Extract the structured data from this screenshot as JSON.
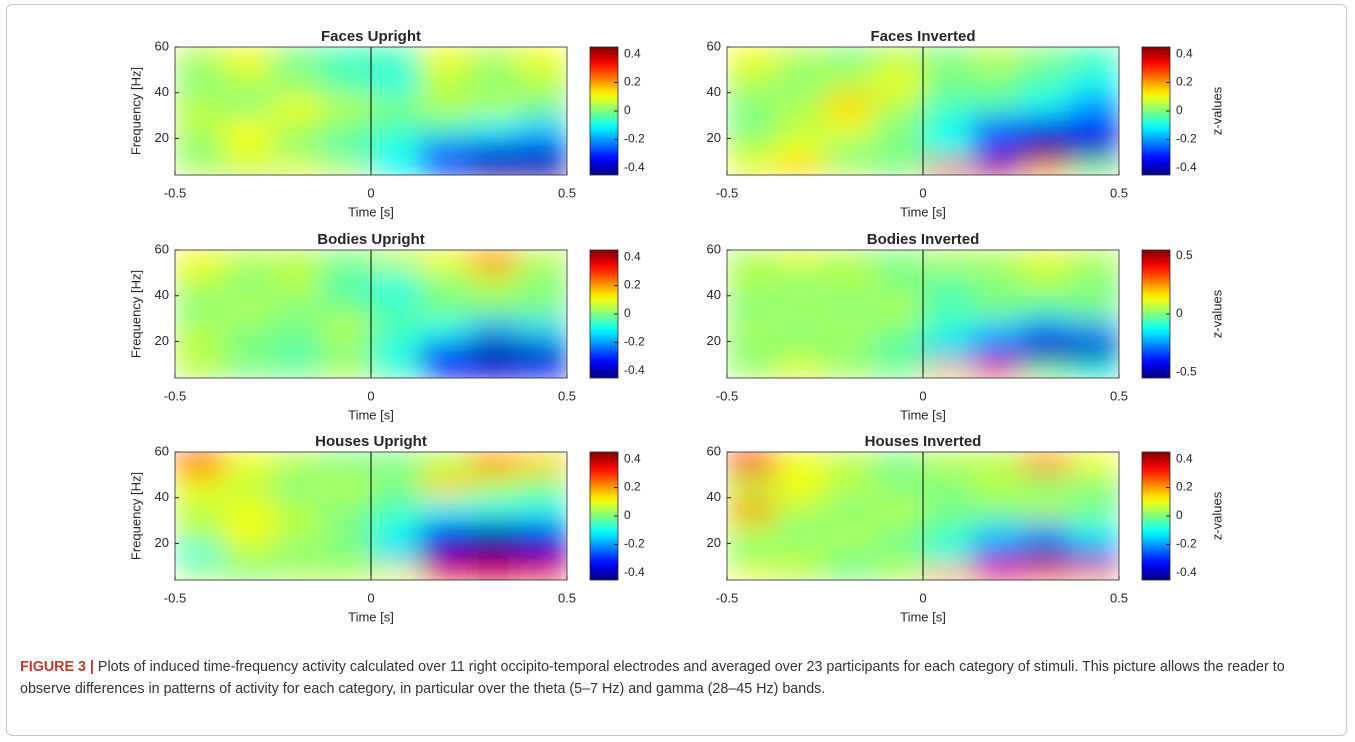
{
  "chart_data": [
    {
      "type": "heatmap",
      "title": "Faces Upright",
      "xlabel": "Time [s]",
      "ylabel": "Frequency [Hz]",
      "xlim": [
        -0.5,
        0.5
      ],
      "xticks": [
        -0.5,
        0,
        0.5
      ],
      "ylim": [
        4,
        60
      ],
      "yticks": [
        20,
        40,
        60
      ],
      "vline": 0,
      "clim": [
        -0.45,
        0.45
      ],
      "cticks": [
        -0.4,
        -0.2,
        0,
        0.2,
        0.4
      ],
      "x": [
        -0.44,
        -0.31,
        -0.19,
        -0.06,
        0.06,
        0.19,
        0.31,
        0.44
      ],
      "y": [
        7,
        15,
        25,
        35,
        45,
        55
      ],
      "z": [
        [
          0.05,
          0.05,
          0.1,
          0.05,
          -0.1,
          -0.3,
          -0.45,
          -0.45
        ],
        [
          0,
          0.1,
          0,
          -0.05,
          -0.1,
          -0.25,
          -0.35,
          -0.35
        ],
        [
          0.05,
          0.1,
          0.05,
          0,
          -0.05,
          -0.05,
          -0.1,
          -0.15
        ],
        [
          0.05,
          0,
          0.1,
          0.05,
          0,
          0.05,
          0.05,
          0
        ],
        [
          0,
          0.05,
          0,
          -0.05,
          -0.1,
          0.05,
          0,
          0.05
        ],
        [
          0.05,
          0.1,
          0,
          -0.05,
          -0.05,
          0.1,
          0.05,
          0.1
        ]
      ]
    },
    {
      "type": "heatmap",
      "title": "Faces Inverted",
      "xlabel": "Time [s]",
      "clabel": "z-values",
      "xlim": [
        -0.5,
        0.5
      ],
      "xticks": [
        -0.5,
        0,
        0.5
      ],
      "ylim": [
        4,
        60
      ],
      "yticks": [
        20,
        40,
        60
      ],
      "vline": 0,
      "clim": [
        -0.45,
        0.45
      ],
      "cticks": [
        -0.4,
        -0.2,
        0,
        0.2,
        0.4
      ],
      "x": [
        -0.44,
        -0.31,
        -0.19,
        -0.06,
        0.06,
        0.19,
        0.31,
        0.44
      ],
      "y": [
        7,
        15,
        25,
        35,
        45,
        55
      ],
      "z": [
        [
          0.1,
          0.15,
          0.05,
          0,
          0.35,
          0.4,
          0.2,
          0
        ],
        [
          0.05,
          0.1,
          0,
          0,
          -0.1,
          -0.3,
          -0.45,
          -0.4
        ],
        [
          0,
          0.05,
          0.1,
          0,
          -0.1,
          -0.25,
          -0.35,
          -0.3
        ],
        [
          0,
          0.05,
          0.15,
          0.05,
          -0.05,
          -0.05,
          -0.1,
          -0.2
        ],
        [
          0.05,
          0,
          0.05,
          0.1,
          0,
          0,
          -0.05,
          -0.1
        ],
        [
          0.1,
          0.05,
          0,
          0.05,
          0,
          0.05,
          0,
          -0.05
        ]
      ]
    },
    {
      "type": "heatmap",
      "title": "Bodies Upright",
      "xlabel": "Time [s]",
      "ylabel": "Frequency [Hz]",
      "xlim": [
        -0.5,
        0.5
      ],
      "xticks": [
        -0.5,
        0,
        0.5
      ],
      "ylim": [
        4,
        60
      ],
      "yticks": [
        20,
        40,
        60
      ],
      "vline": 0,
      "clim": [
        -0.45,
        0.45
      ],
      "cticks": [
        -0.4,
        -0.2,
        0,
        0.2,
        0.4
      ],
      "x": [
        -0.44,
        -0.31,
        -0.19,
        -0.06,
        0.06,
        0.19,
        0.31,
        0.44
      ],
      "y": [
        7,
        15,
        25,
        35,
        45,
        55
      ],
      "z": [
        [
          0.05,
          0,
          0,
          0.05,
          -0.05,
          -0.3,
          -0.35,
          -0.3
        ],
        [
          0.05,
          0,
          -0.05,
          0,
          -0.1,
          -0.35,
          -0.45,
          -0.4
        ],
        [
          0.05,
          0,
          0,
          0.05,
          -0.05,
          -0.1,
          -0.2,
          -0.15
        ],
        [
          0,
          0.05,
          0,
          0,
          -0.05,
          0,
          0,
          0
        ],
        [
          0.05,
          0,
          0.05,
          -0.05,
          -0.1,
          0,
          0.05,
          0
        ],
        [
          0.1,
          0.05,
          0.05,
          0,
          0.05,
          0.1,
          0.2,
          0.05
        ]
      ]
    },
    {
      "type": "heatmap",
      "title": "Bodies Inverted",
      "xlabel": "Time [s]",
      "clabel": "z-values",
      "xlim": [
        -0.5,
        0.5
      ],
      "xticks": [
        -0.5,
        0,
        0.5
      ],
      "ylim": [
        4,
        60
      ],
      "yticks": [
        20,
        40,
        60
      ],
      "vline": 0,
      "clim": [
        -0.55,
        0.55
      ],
      "cticks": [
        -0.5,
        0,
        0.5
      ],
      "x": [
        -0.44,
        -0.31,
        -0.19,
        -0.06,
        0.06,
        0.19,
        0.31,
        0.44
      ],
      "y": [
        7,
        15,
        25,
        35,
        45,
        55
      ],
      "z": [
        [
          0.05,
          0.1,
          0.05,
          0,
          0.2,
          0.3,
          0,
          -0.1
        ],
        [
          0,
          0.05,
          0,
          -0.05,
          -0.2,
          -0.4,
          -0.5,
          -0.5
        ],
        [
          0.05,
          0,
          0.05,
          0,
          -0.1,
          -0.2,
          -0.3,
          -0.25
        ],
        [
          0,
          0.05,
          0,
          0.05,
          -0.05,
          0,
          -0.05,
          0
        ],
        [
          0.05,
          0,
          0.05,
          0,
          -0.05,
          0,
          0.05,
          0
        ],
        [
          0.05,
          0.1,
          0.05,
          0,
          0.05,
          0.05,
          0.1,
          0.05
        ]
      ]
    },
    {
      "type": "heatmap",
      "title": "Houses Upright",
      "xlabel": "Time [s]",
      "ylabel": "Frequency [Hz]",
      "xlim": [
        -0.5,
        0.5
      ],
      "xticks": [
        -0.5,
        0,
        0.5
      ],
      "ylim": [
        4,
        60
      ],
      "yticks": [
        20,
        40,
        60
      ],
      "vline": 0,
      "clim": [
        -0.45,
        0.45
      ],
      "cticks": [
        -0.4,
        -0.2,
        0,
        0.2,
        0.4
      ],
      "x": [
        -0.44,
        -0.31,
        -0.19,
        -0.06,
        0.06,
        0.19,
        0.31,
        0.44
      ],
      "y": [
        7,
        15,
        25,
        35,
        45,
        55
      ],
      "z": [
        [
          0.05,
          0,
          0.05,
          0.05,
          0.1,
          0.3,
          0.35,
          0.3
        ],
        [
          -0.1,
          0.05,
          0,
          0,
          -0.15,
          -0.4,
          -0.45,
          -0.4
        ],
        [
          0.05,
          0.1,
          0.05,
          0,
          -0.1,
          -0.35,
          -0.4,
          -0.35
        ],
        [
          0.05,
          0.1,
          0.05,
          0,
          -0.05,
          -0.1,
          -0.1,
          -0.1
        ],
        [
          0.1,
          0.05,
          0,
          0.05,
          0,
          0.15,
          0.05,
          0
        ],
        [
          0.25,
          0.1,
          0.05,
          0,
          0,
          0.05,
          0.2,
          0.15
        ]
      ]
    },
    {
      "type": "heatmap",
      "title": "Houses Inverted",
      "xlabel": "Time [s]",
      "clabel": "z-values",
      "xlim": [
        -0.5,
        0.5
      ],
      "xticks": [
        -0.5,
        0,
        0.5
      ],
      "ylim": [
        4,
        60
      ],
      "yticks": [
        20,
        40,
        60
      ],
      "vline": 0,
      "clim": [
        -0.45,
        0.45
      ],
      "cticks": [
        -0.4,
        -0.2,
        0,
        0.2,
        0.4
      ],
      "x": [
        -0.44,
        -0.31,
        -0.19,
        -0.06,
        0.06,
        0.19,
        0.31,
        0.44
      ],
      "y": [
        7,
        15,
        25,
        35,
        45,
        55
      ],
      "z": [
        [
          0.1,
          0.05,
          0,
          0.05,
          0.2,
          0.3,
          0.25,
          0.2
        ],
        [
          0,
          0.05,
          0,
          0,
          -0.1,
          -0.3,
          -0.4,
          -0.3
        ],
        [
          0.05,
          0,
          0.05,
          0,
          -0.05,
          -0.15,
          -0.2,
          -0.1
        ],
        [
          0.2,
          0.05,
          0,
          0.05,
          0,
          0,
          0.05,
          0
        ],
        [
          0.05,
          0.1,
          0.05,
          0,
          0,
          0.05,
          0,
          0
        ],
        [
          0.3,
          0.1,
          0.05,
          0,
          0.05,
          0.05,
          0.2,
          0.1
        ]
      ]
    }
  ],
  "caption": {
    "label": "FIGURE 3",
    "separator": "|",
    "text": "Plots of induced time-frequency activity calculated over 11 right occipito-temporal electrodes and averaged over 23 participants for each category of stimuli. This picture allows the reader to observe differences in patterns of activity for each category, in particular over the theta (5–7 Hz) and gamma (28–45 Hz) bands."
  }
}
